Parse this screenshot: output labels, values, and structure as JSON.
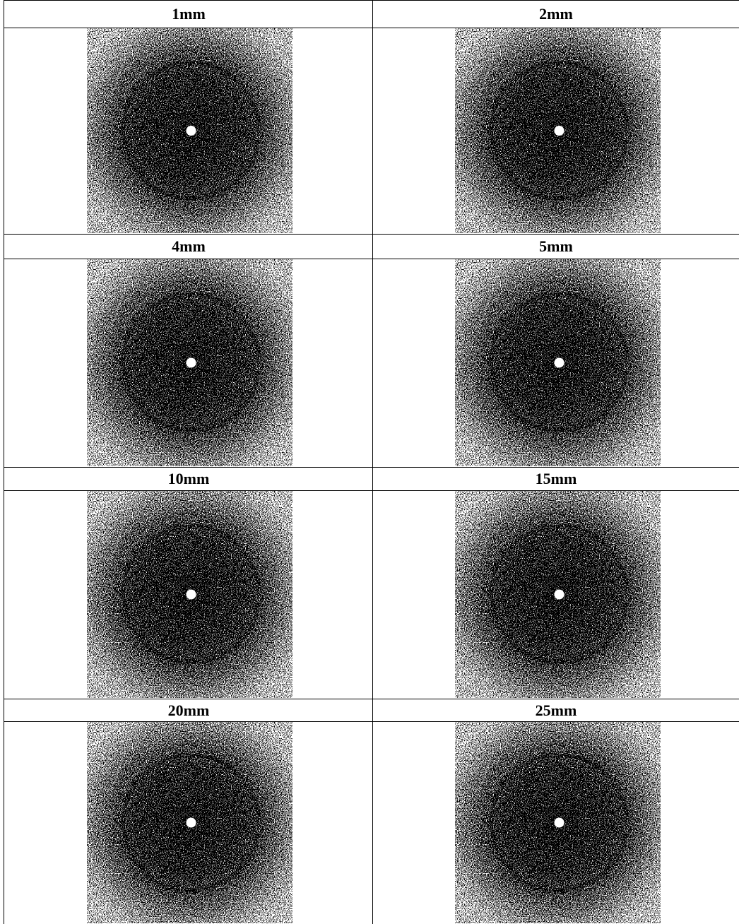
{
  "cells": [
    {
      "label": "1mm"
    },
    {
      "label": "2mm"
    },
    {
      "label": "4mm"
    },
    {
      "label": "5mm"
    },
    {
      "label": "10mm"
    },
    {
      "label": "15mm"
    },
    {
      "label": "20mm"
    },
    {
      "label": "25mm"
    }
  ]
}
